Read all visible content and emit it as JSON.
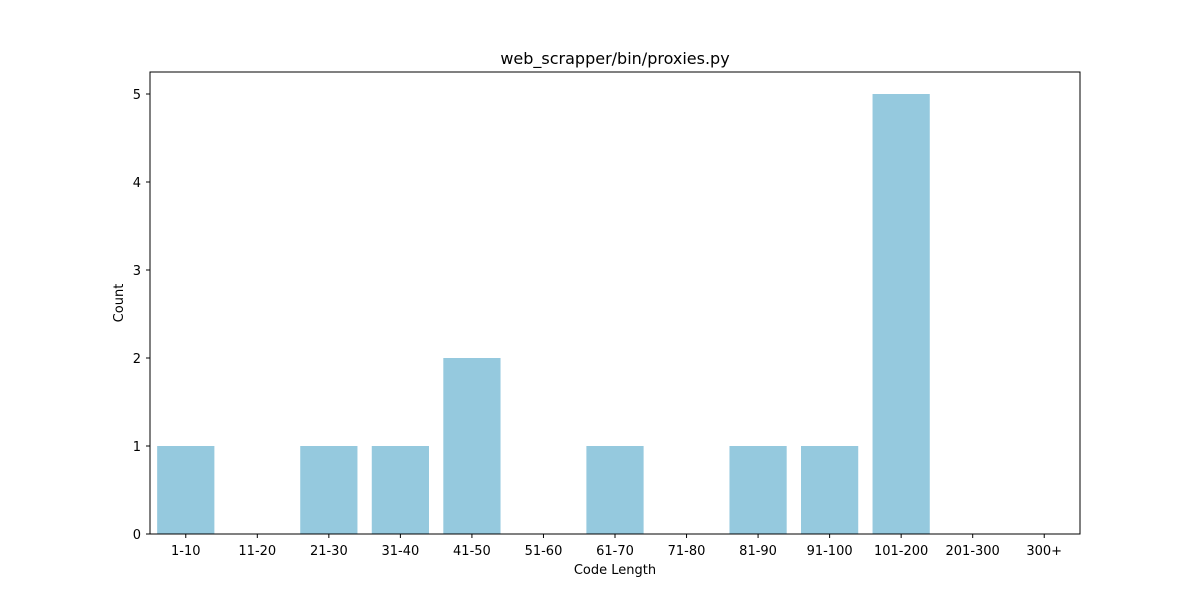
{
  "chart_data": {
    "type": "bar",
    "title": "web_scrapper/bin/proxies.py",
    "xlabel": "Code Length",
    "ylabel": "Count",
    "categories": [
      "1-10",
      "11-20",
      "21-30",
      "31-40",
      "41-50",
      "51-60",
      "61-70",
      "71-80",
      "81-90",
      "91-100",
      "101-200",
      "201-300",
      "300+"
    ],
    "values": [
      1,
      0,
      1,
      1,
      2,
      0,
      1,
      0,
      1,
      1,
      5,
      0,
      0
    ],
    "ylim": [
      0,
      5.25
    ],
    "yticks": [
      0,
      1,
      2,
      3,
      4,
      5
    ],
    "grid": false,
    "legend": "none",
    "bar_color": "#95c9de"
  }
}
